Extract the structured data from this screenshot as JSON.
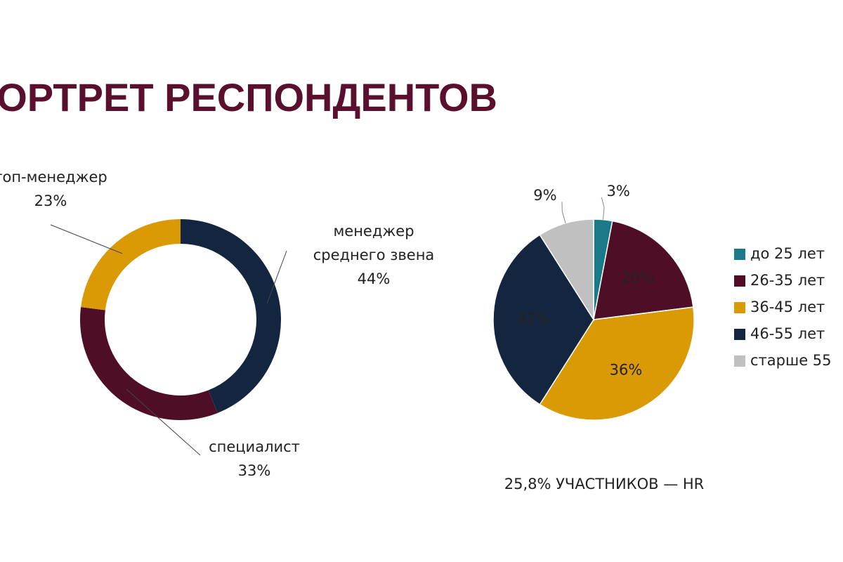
{
  "page_title": "ПОРТРЕТ РЕСПОНДЕНТОВ",
  "chart_data": [
    {
      "type": "donut",
      "categories": [
        "менеджер среднего звена",
        "специалист",
        "топ-менеджер"
      ],
      "values": [
        44,
        33,
        23
      ],
      "value_labels": [
        "44%",
        "33%",
        "23%"
      ],
      "colors": [
        "#13253f",
        "#4e0e26",
        "#d99a05"
      ]
    },
    {
      "type": "pie",
      "categories": [
        "до 25 лет",
        "26-35 лет",
        "36-45 лет",
        "46-55 лет",
        "старше 55"
      ],
      "values": [
        3,
        20,
        36,
        32,
        9
      ],
      "value_labels": [
        "3%",
        "20%",
        "36%",
        "32%",
        "9%"
      ],
      "colors": [
        "#1a7a8a",
        "#4e0e26",
        "#d99a05",
        "#13253f",
        "#c0c0c0"
      ],
      "legend": "right",
      "annotation": "25,8% УЧАСТНИКОВ — HR"
    }
  ]
}
